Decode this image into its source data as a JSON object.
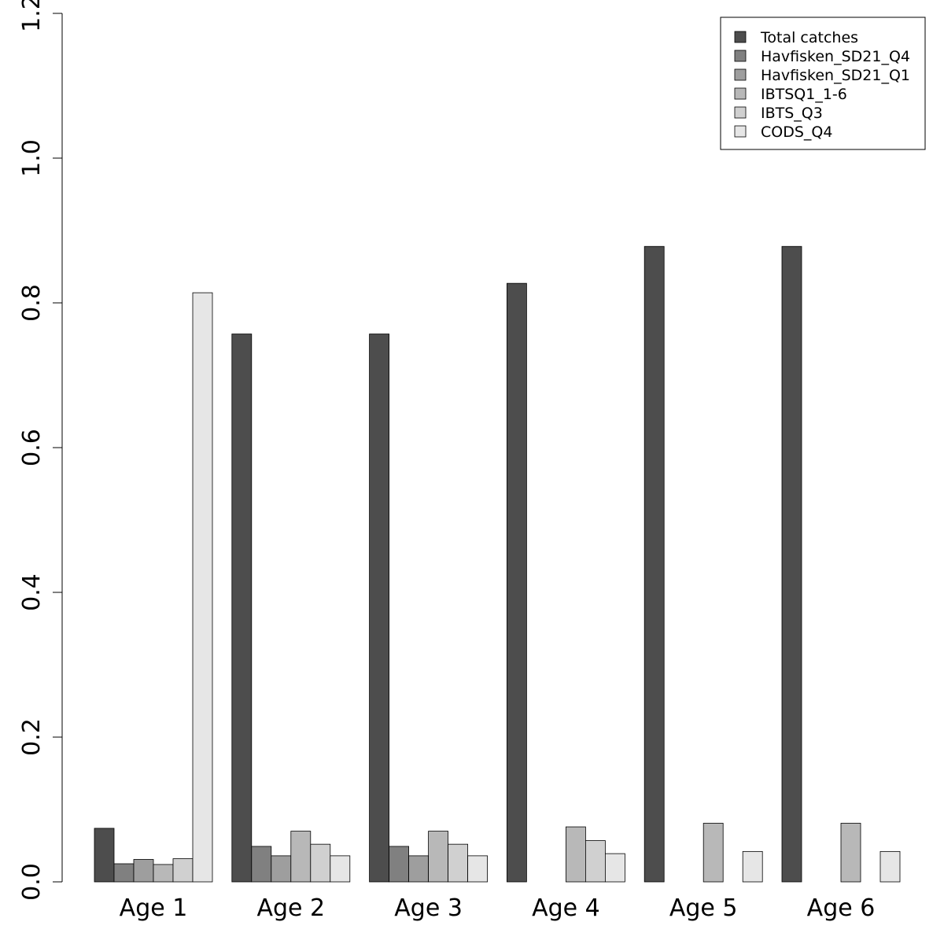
{
  "chart_data": {
    "type": "bar",
    "categories": [
      "Age 1",
      "Age 2",
      "Age 3",
      "Age 4",
      "Age 5",
      "Age 6"
    ],
    "series": [
      {
        "name": "Total catches",
        "color": "#4d4d4d",
        "values": [
          0.074,
          0.757,
          0.757,
          0.827,
          0.878,
          0.878
        ]
      },
      {
        "name": "Havfisken_SD21_Q4",
        "color": "#808080",
        "values": [
          0.025,
          0.049,
          0.049,
          0,
          0,
          0
        ]
      },
      {
        "name": "Havfisken_SD21_Q1",
        "color": "#9e9e9e",
        "values": [
          0.031,
          0.036,
          0.036,
          0,
          0,
          0
        ]
      },
      {
        "name": "IBTSQ1_1-6",
        "color": "#b8b8b8",
        "values": [
          0.024,
          0.07,
          0.07,
          0.076,
          0.081,
          0.081
        ]
      },
      {
        "name": "IBTS_Q3",
        "color": "#d0d0d0",
        "values": [
          0.032,
          0.052,
          0.052,
          0.057,
          0,
          0
        ]
      },
      {
        "name": "CODS_Q4",
        "color": "#e6e6e6",
        "values": [
          0.814,
          0.036,
          0.036,
          0.039,
          0.042,
          0.042
        ]
      }
    ],
    "title": "",
    "xlabel": "",
    "ylabel": "",
    "ylim": [
      0,
      1.2
    ],
    "yticks": [
      "0.0",
      "0.2",
      "0.4",
      "0.6",
      "0.8",
      "1.0",
      "1.2"
    ],
    "grid": false,
    "legend": "top-right"
  }
}
